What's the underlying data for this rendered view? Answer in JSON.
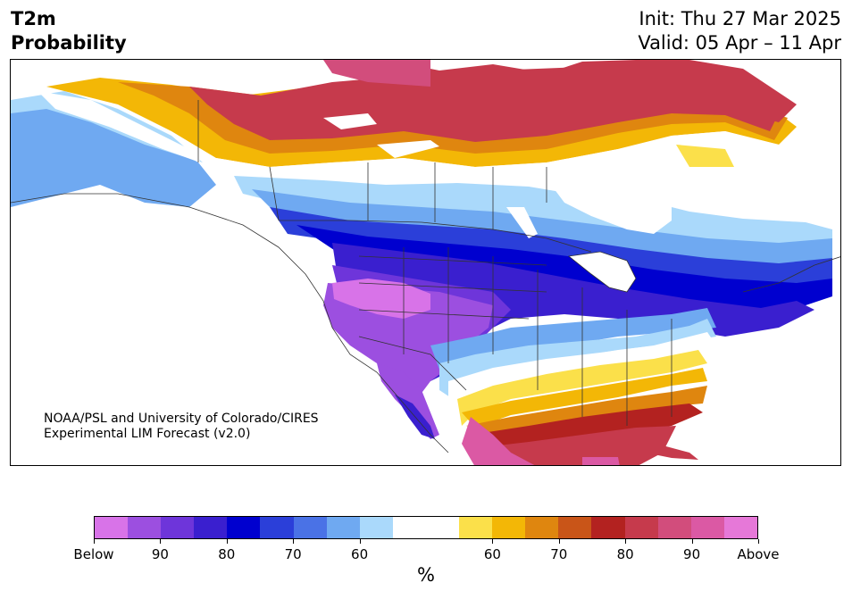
{
  "header": {
    "variable": "T2m",
    "product": "Probability",
    "init": "Init: Thu 27 Mar 2025",
    "valid": "Valid: 05 Apr – 11 Apr"
  },
  "credit": {
    "line1": "NOAA/PSL and University of Colorado/CIRES",
    "line2": "Experimental LIM Forecast (v2.0)"
  },
  "colorbar": {
    "colors": [
      "#d873e8",
      "#9c4fe0",
      "#6e35da",
      "#3a1fcf",
      "#0000cf",
      "#2b3fd9",
      "#4a72e6",
      "#6fa9f1",
      "#aad9fb",
      "#ffffff",
      "#ffffff",
      "#fbe04a",
      "#f3b706",
      "#df860f",
      "#c95518",
      "#b32220",
      "#c63a4c",
      "#d24d7c",
      "#db59a4",
      "#e678d8"
    ],
    "tick_labels": [
      "Below",
      "90",
      "80",
      "70",
      "60",
      "60",
      "70",
      "80",
      "90",
      "Above"
    ],
    "unit": "%"
  },
  "map": {
    "colors": {
      "below_strong": "#d873e8",
      "below_purple": "#9c4fe0",
      "below_violet": "#6e35da",
      "below_indigo": "#3a1fcf",
      "below_blue": "#0000cf",
      "below_mid": "#2b3fd9",
      "below_light": "#4a72e6",
      "below_sky": "#6fa9f1",
      "below_pale": "#aad9fb",
      "neutral": "#ffffff",
      "above_yellow": "#fbe04a",
      "above_gold": "#f3b706",
      "above_orange": "#df860f",
      "above_rust": "#c95518",
      "above_red": "#b32220",
      "above_crimson": "#c63a4c",
      "above_rose": "#d24d7c",
      "above_pink": "#db59a4",
      "above_magenta": "#e678d8"
    }
  }
}
